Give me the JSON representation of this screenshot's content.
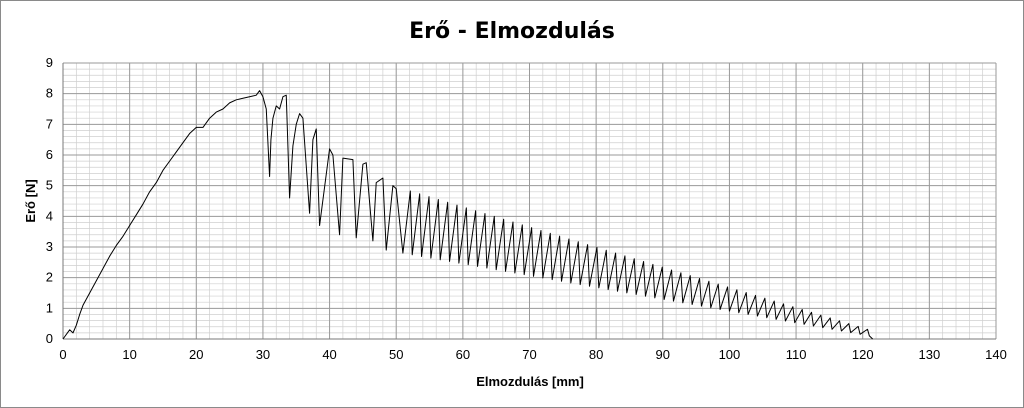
{
  "chart_data": {
    "type": "line",
    "title": "Erő - Elmozdulás",
    "xlabel": "Elmozdulás [mm]",
    "ylabel": "Erő [N]",
    "xlim": [
      0,
      140
    ],
    "ylim": [
      0,
      9
    ],
    "x_ticks": [
      "0",
      "10",
      "20",
      "30",
      "40",
      "50",
      "60",
      "70",
      "80",
      "90",
      "100",
      "110",
      "120",
      "130",
      "140"
    ],
    "y_ticks": [
      "0",
      "1",
      "2",
      "3",
      "4",
      "5",
      "6",
      "7",
      "8",
      "9"
    ],
    "grid": true,
    "legend": "none",
    "series": [
      {
        "color": "#000000",
        "x": [
          0,
          1,
          1.5,
          2,
          2.5,
          3,
          4,
          5,
          6,
          7,
          8,
          9,
          10,
          11,
          12,
          13,
          14,
          15,
          16,
          17,
          18,
          19,
          20,
          21,
          22,
          23,
          24,
          25,
          26,
          27,
          28,
          29,
          29.5,
          30,
          30.5,
          31,
          31.2,
          31.5,
          32,
          32.5,
          33,
          33.5,
          34,
          34.5,
          35,
          35.5,
          36,
          37,
          37.5,
          38,
          38.5,
          40,
          40.5,
          41.5,
          42,
          43.5,
          44,
          45,
          45.5,
          46.5,
          47,
          48,
          48.5,
          49.5,
          50,
          51
        ],
        "y": [
          0,
          0.3,
          0.2,
          0.45,
          0.8,
          1.1,
          1.5,
          1.9,
          2.3,
          2.7,
          3.05,
          3.35,
          3.7,
          4.05,
          4.4,
          4.8,
          5.1,
          5.5,
          5.8,
          6.1,
          6.4,
          6.7,
          6.9,
          6.9,
          7.2,
          7.4,
          7.5,
          7.7,
          7.8,
          7.85,
          7.9,
          7.95,
          8.1,
          7.9,
          7.5,
          5.3,
          6.5,
          7.2,
          7.6,
          7.5,
          7.9,
          7.95,
          4.6,
          6.3,
          7.0,
          7.35,
          7.2,
          4.1,
          6.5,
          6.85,
          3.7,
          6.2,
          6.0,
          3.4,
          5.9,
          5.85,
          3.3,
          5.7,
          5.75,
          3.2,
          5.1,
          5.25,
          2.9,
          5.0,
          4.9,
          2.8
        ]
      }
    ],
    "oscillation": {
      "x_start": 51,
      "x_end": 121,
      "cycles": 50,
      "upper_start": 4.9,
      "upper_end": 0.3,
      "lower_start": 2.8,
      "lower_end": 0.1,
      "final_x": 121.5,
      "final_y": 0
    }
  }
}
